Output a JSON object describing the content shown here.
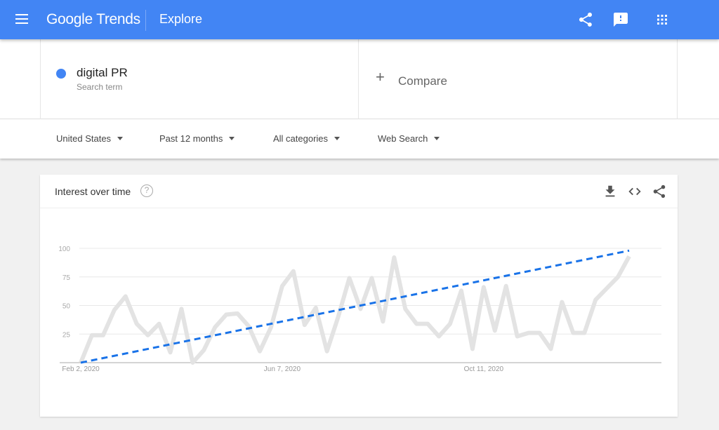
{
  "header": {
    "logo": "Google Trends",
    "page": "Explore",
    "icons": [
      "menu-icon",
      "share-icon",
      "feedback-icon",
      "apps-icon"
    ]
  },
  "search": {
    "term": "digital PR",
    "term_sub": "Search term",
    "term_color": "#4285f4",
    "compare_label": "Compare"
  },
  "filters": [
    {
      "label": "United States"
    },
    {
      "label": "Past 12 months"
    },
    {
      "label": "All categories"
    },
    {
      "label": "Web Search"
    }
  ],
  "card": {
    "title": "Interest over time",
    "icons": [
      "help-icon",
      "download-icon",
      "embed-icon",
      "share-icon"
    ]
  },
  "chart_data": {
    "type": "line",
    "title": "",
    "xlabel": "",
    "ylabel": "",
    "ylim": [
      0,
      100
    ],
    "yticks": [
      25,
      50,
      75,
      100
    ],
    "xticks": [
      {
        "label": "Feb 2, 2020",
        "index": 0
      },
      {
        "label": "Jun 7, 2020",
        "index": 18
      },
      {
        "label": "Oct 11, 2020",
        "index": 36
      }
    ],
    "grid": true,
    "series": [
      {
        "color": "#e3e3e3",
        "values": [
          0,
          24,
          24,
          46,
          58,
          34,
          24,
          34,
          9,
          47,
          0,
          11,
          31,
          42,
          43,
          32,
          10,
          31,
          67,
          80,
          33,
          48,
          10,
          40,
          74,
          47,
          74,
          36,
          92,
          47,
          34,
          34,
          23,
          34,
          63,
          12,
          66,
          28,
          67,
          23,
          26,
          26,
          12,
          53,
          26,
          26,
          55,
          65,
          75,
          93
        ]
      },
      {
        "color": "#1a73e8",
        "style": "dashed",
        "trend": [
          0,
          98
        ]
      }
    ]
  }
}
